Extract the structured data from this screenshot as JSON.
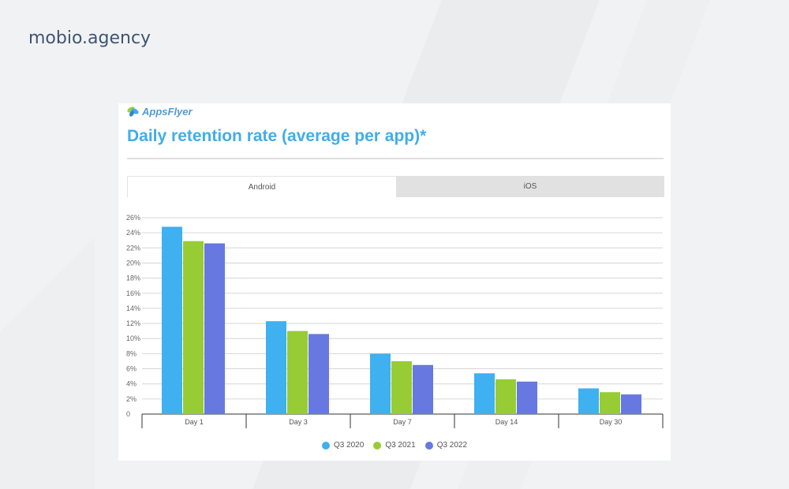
{
  "site": {
    "name": "mobio.agency"
  },
  "card": {
    "brand": "AppsFlyer",
    "title": "Daily retention rate (average per app)*",
    "tabs": [
      {
        "label": "Android",
        "active": true
      },
      {
        "label": "iOS",
        "active": false
      }
    ]
  },
  "chart_data": {
    "type": "bar",
    "categories": [
      "Day 1",
      "Day 3",
      "Day 7",
      "Day 14",
      "Day 30"
    ],
    "series": [
      {
        "name": "Q3 2020",
        "color": "#3fb0f0",
        "values": [
          24.8,
          12.3,
          8.0,
          5.4,
          3.4
        ]
      },
      {
        "name": "Q3 2021",
        "color": "#98cc34",
        "values": [
          22.9,
          11.0,
          7.0,
          4.6,
          2.9
        ]
      },
      {
        "name": "Q3 2022",
        "color": "#6778e0",
        "values": [
          22.6,
          10.6,
          6.5,
          4.3,
          2.6
        ]
      }
    ],
    "yticks": [
      "0",
      "2%",
      "4%",
      "6%",
      "8%",
      "10%",
      "12%",
      "14%",
      "16%",
      "18%",
      "20%",
      "22%",
      "24%",
      "26%"
    ],
    "ylim": [
      0,
      26
    ],
    "grid": true,
    "legend": "bottom-center"
  }
}
